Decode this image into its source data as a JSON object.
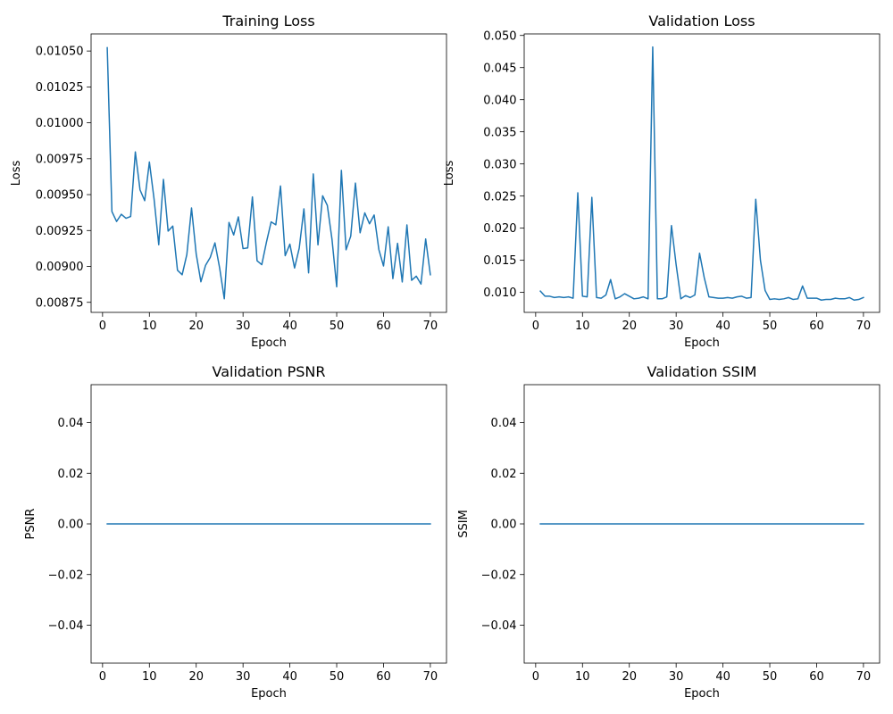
{
  "chart_data": [
    {
      "type": "line",
      "title": "Training Loss",
      "xlabel": "Epoch",
      "ylabel": "Loss",
      "color": "#1f77b4",
      "xlim": [
        -2.45,
        73.45
      ],
      "ylim": [
        0.00868,
        0.010619
      ],
      "xticks": [
        0,
        10,
        20,
        30,
        40,
        50,
        60,
        70
      ],
      "xtick_labels": [
        "0",
        "10",
        "20",
        "30",
        "40",
        "50",
        "60",
        "70"
      ],
      "yticks": [
        0.00875,
        0.009,
        0.00925,
        0.0095,
        0.00975,
        0.01,
        0.01025,
        0.0105
      ],
      "ytick_labels": [
        "0.00875",
        "0.00900",
        "0.00925",
        "0.00950",
        "0.00975",
        "0.01000",
        "0.01025",
        "0.01050"
      ],
      "x": [
        1,
        2,
        3,
        4,
        5,
        6,
        7,
        8,
        9,
        10,
        11,
        12,
        13,
        14,
        15,
        16,
        17,
        18,
        19,
        20,
        21,
        22,
        23,
        24,
        25,
        26,
        27,
        28,
        29,
        30,
        31,
        32,
        33,
        34,
        35,
        36,
        37,
        38,
        39,
        40,
        41,
        42,
        43,
        44,
        45,
        46,
        47,
        48,
        49,
        50,
        51,
        52,
        53,
        54,
        55,
        56,
        57,
        58,
        59,
        60,
        61,
        62,
        63,
        64,
        65,
        66,
        67,
        68,
        69,
        70
      ],
      "y": [
        0.010523,
        0.009382,
        0.009313,
        0.009363,
        0.009335,
        0.009348,
        0.009797,
        0.009533,
        0.009458,
        0.009727,
        0.009469,
        0.009151,
        0.009606,
        0.009246,
        0.009281,
        0.008973,
        0.008942,
        0.009083,
        0.009407,
        0.009086,
        0.008893,
        0.009008,
        0.009063,
        0.009164,
        0.00899,
        0.008775,
        0.009306,
        0.009219,
        0.009345,
        0.009124,
        0.009129,
        0.009484,
        0.009039,
        0.009012,
        0.009169,
        0.00931,
        0.00929,
        0.00956,
        0.009075,
        0.009155,
        0.008989,
        0.009127,
        0.009401,
        0.008955,
        0.009644,
        0.00915,
        0.009492,
        0.009425,
        0.009188,
        0.008858,
        0.009669,
        0.009116,
        0.009211,
        0.00958,
        0.009234,
        0.009373,
        0.009297,
        0.009358,
        0.009118,
        0.009003,
        0.009276,
        0.008915,
        0.009161,
        0.008892,
        0.009289,
        0.008903,
        0.008932,
        0.008877,
        0.009191,
        0.008942
      ]
    },
    {
      "type": "line",
      "title": "Validation Loss",
      "xlabel": "Epoch",
      "ylabel": "Loss",
      "color": "#1f77b4",
      "xlim": [
        -2.45,
        73.45
      ],
      "ylim": [
        0.00689,
        0.05024
      ],
      "xticks": [
        0,
        10,
        20,
        30,
        40,
        50,
        60,
        70
      ],
      "xtick_labels": [
        "0",
        "10",
        "20",
        "30",
        "40",
        "50",
        "60",
        "70"
      ],
      "yticks": [
        0.01,
        0.015,
        0.02,
        0.025,
        0.03,
        0.035,
        0.04,
        0.045,
        0.05
      ],
      "ytick_labels": [
        "0.010",
        "0.015",
        "0.020",
        "0.025",
        "0.030",
        "0.035",
        "0.040",
        "0.045",
        "0.050"
      ],
      "x": [
        1,
        2,
        3,
        4,
        5,
        6,
        7,
        8,
        9,
        10,
        11,
        12,
        13,
        14,
        15,
        16,
        17,
        18,
        19,
        20,
        21,
        22,
        23,
        24,
        25,
        26,
        27,
        28,
        29,
        30,
        31,
        32,
        33,
        34,
        35,
        36,
        37,
        38,
        39,
        40,
        41,
        42,
        43,
        44,
        45,
        46,
        47,
        48,
        49,
        50,
        51,
        52,
        53,
        54,
        55,
        56,
        57,
        58,
        59,
        60,
        61,
        62,
        63,
        64,
        65,
        66,
        67,
        68,
        69,
        70
      ],
      "y": [
        0.0102,
        0.0094,
        0.0094,
        0.0092,
        0.0093,
        0.0092,
        0.0093,
        0.0091,
        0.0255,
        0.0094,
        0.0093,
        0.0248,
        0.0092,
        0.0091,
        0.0096,
        0.012,
        0.009,
        0.0093,
        0.0098,
        0.0094,
        0.009,
        0.0091,
        0.0093,
        0.009,
        0.0482,
        0.009,
        0.009,
        0.0093,
        0.0204,
        0.0143,
        0.009,
        0.0095,
        0.0092,
        0.0096,
        0.0161,
        0.0123,
        0.0093,
        0.0092,
        0.0091,
        0.0091,
        0.0092,
        0.0091,
        0.0093,
        0.0094,
        0.0091,
        0.0092,
        0.0245,
        0.015,
        0.0103,
        0.0089,
        0.009,
        0.0089,
        0.009,
        0.0092,
        0.0089,
        0.009,
        0.011,
        0.0091,
        0.0091,
        0.0091,
        0.0088,
        0.0089,
        0.0089,
        0.0091,
        0.009,
        0.009,
        0.0092,
        0.0088,
        0.0089,
        0.0092
      ]
    },
    {
      "type": "line",
      "title": "Validation PSNR",
      "xlabel": "Epoch",
      "ylabel": "PSNR",
      "color": "#1f77b4",
      "xlim": [
        -2.45,
        73.45
      ],
      "ylim": [
        -0.055,
        0.055
      ],
      "xticks": [
        0,
        10,
        20,
        30,
        40,
        50,
        60,
        70
      ],
      "xtick_labels": [
        "0",
        "10",
        "20",
        "30",
        "40",
        "50",
        "60",
        "70"
      ],
      "yticks": [
        -0.04,
        -0.02,
        0.0,
        0.02,
        0.04
      ],
      "ytick_labels": [
        "−0.04",
        "−0.02",
        "0.00",
        "0.02",
        "0.04"
      ],
      "x": [
        1,
        2,
        3,
        4,
        5,
        6,
        7,
        8,
        9,
        10,
        11,
        12,
        13,
        14,
        15,
        16,
        17,
        18,
        19,
        20,
        21,
        22,
        23,
        24,
        25,
        26,
        27,
        28,
        29,
        30,
        31,
        32,
        33,
        34,
        35,
        36,
        37,
        38,
        39,
        40,
        41,
        42,
        43,
        44,
        45,
        46,
        47,
        48,
        49,
        50,
        51,
        52,
        53,
        54,
        55,
        56,
        57,
        58,
        59,
        60,
        61,
        62,
        63,
        64,
        65,
        66,
        67,
        68,
        69,
        70
      ],
      "y": [
        0,
        0,
        0,
        0,
        0,
        0,
        0,
        0,
        0,
        0,
        0,
        0,
        0,
        0,
        0,
        0,
        0,
        0,
        0,
        0,
        0,
        0,
        0,
        0,
        0,
        0,
        0,
        0,
        0,
        0,
        0,
        0,
        0,
        0,
        0,
        0,
        0,
        0,
        0,
        0,
        0,
        0,
        0,
        0,
        0,
        0,
        0,
        0,
        0,
        0,
        0,
        0,
        0,
        0,
        0,
        0,
        0,
        0,
        0,
        0,
        0,
        0,
        0,
        0,
        0,
        0,
        0,
        0,
        0,
        0
      ]
    },
    {
      "type": "line",
      "title": "Validation SSIM",
      "xlabel": "Epoch",
      "ylabel": "SSIM",
      "color": "#1f77b4",
      "xlim": [
        -2.45,
        73.45
      ],
      "ylim": [
        -0.055,
        0.055
      ],
      "xticks": [
        0,
        10,
        20,
        30,
        40,
        50,
        60,
        70
      ],
      "xtick_labels": [
        "0",
        "10",
        "20",
        "30",
        "40",
        "50",
        "60",
        "70"
      ],
      "yticks": [
        -0.04,
        -0.02,
        0.0,
        0.02,
        0.04
      ],
      "ytick_labels": [
        "−0.04",
        "−0.02",
        "0.00",
        "0.02",
        "0.04"
      ],
      "x": [
        1,
        2,
        3,
        4,
        5,
        6,
        7,
        8,
        9,
        10,
        11,
        12,
        13,
        14,
        15,
        16,
        17,
        18,
        19,
        20,
        21,
        22,
        23,
        24,
        25,
        26,
        27,
        28,
        29,
        30,
        31,
        32,
        33,
        34,
        35,
        36,
        37,
        38,
        39,
        40,
        41,
        42,
        43,
        44,
        45,
        46,
        47,
        48,
        49,
        50,
        51,
        52,
        53,
        54,
        55,
        56,
        57,
        58,
        59,
        60,
        61,
        62,
        63,
        64,
        65,
        66,
        67,
        68,
        69,
        70
      ],
      "y": [
        0,
        0,
        0,
        0,
        0,
        0,
        0,
        0,
        0,
        0,
        0,
        0,
        0,
        0,
        0,
        0,
        0,
        0,
        0,
        0,
        0,
        0,
        0,
        0,
        0,
        0,
        0,
        0,
        0,
        0,
        0,
        0,
        0,
        0,
        0,
        0,
        0,
        0,
        0,
        0,
        0,
        0,
        0,
        0,
        0,
        0,
        0,
        0,
        0,
        0,
        0,
        0,
        0,
        0,
        0,
        0,
        0,
        0,
        0,
        0,
        0,
        0,
        0,
        0,
        0,
        0,
        0,
        0,
        0,
        0
      ]
    }
  ]
}
